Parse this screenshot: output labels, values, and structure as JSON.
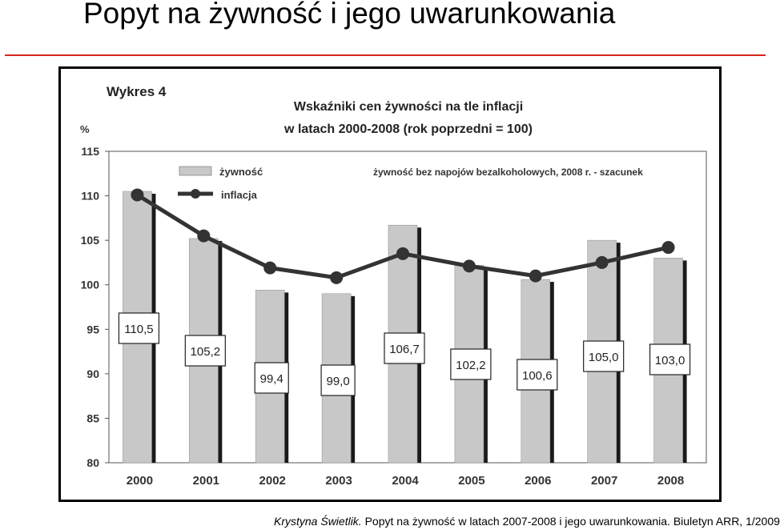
{
  "slide": {
    "title": "Popyt na żywność i jego uwarunkowania",
    "accent_color": "#d9261c"
  },
  "caption": {
    "author": "Krystyna Świetlik.",
    "text": " Popyt na żywność w latach 2007-2008 i jego uwarunkowania. Biuletyn ARR, 1/2009"
  },
  "chart_data": {
    "type": "bar",
    "label": "Wykres 4",
    "title": "Wskaźniki cen żywności na tle inflacji",
    "subtitle": "w latach 2000-2008 (rok poprzedni = 100)",
    "ylabel": "%",
    "ylim": [
      80,
      115
    ],
    "yticks": [
      80,
      85,
      90,
      95,
      100,
      105,
      110,
      115
    ],
    "categories": [
      "2000",
      "2001",
      "2002",
      "2003",
      "2004",
      "2005",
      "2006",
      "2007",
      "2008"
    ],
    "series": [
      {
        "name": "żywność",
        "type": "bar",
        "color": "#c8c8c8",
        "values": [
          110.5,
          105.2,
          99.4,
          99.0,
          106.7,
          102.2,
          100.6,
          105.0,
          103.0
        ],
        "value_labels": [
          "110,5",
          "105,2",
          "99,4",
          "99,0",
          "106,7",
          "102,2",
          "100,6",
          "105,0",
          "103,0"
        ]
      },
      {
        "name": "inflacja",
        "type": "line",
        "color": "#333333",
        "values": [
          110.1,
          105.5,
          101.9,
          100.8,
          103.5,
          102.1,
          101.0,
          102.5,
          104.2
        ]
      }
    ],
    "note": "żywność bez napojów bezalkoholowych, 2008 r. - szacunek",
    "legend_position": "top-left",
    "grid": false
  }
}
